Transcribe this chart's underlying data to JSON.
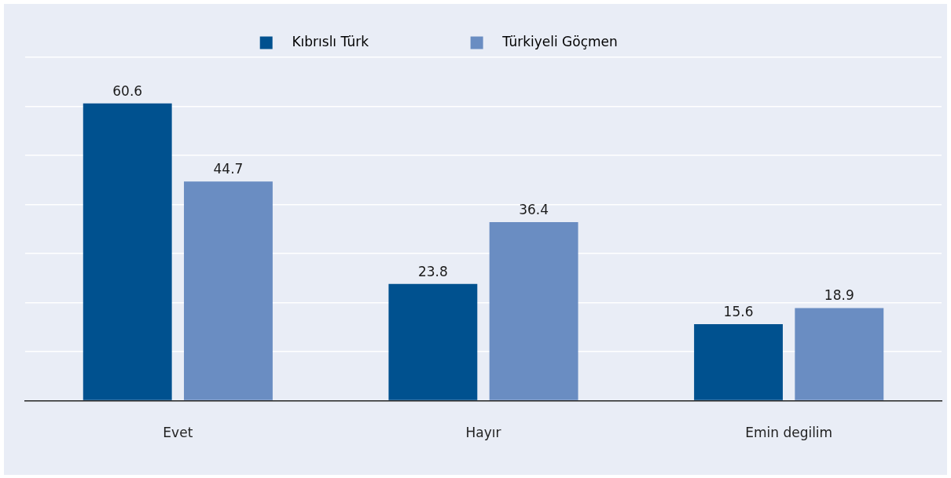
{
  "chart_data": {
    "type": "bar",
    "categories": [
      "Evet",
      "Hayır",
      "Emin degilim"
    ],
    "series": [
      {
        "name": "Kıbrıslı Türk",
        "color": "#00518f",
        "values": [
          60.6,
          23.8,
          15.6
        ]
      },
      {
        "name": "Türkiyeli Göçmen",
        "color": "#6a8dc2",
        "values": [
          44.7,
          36.4,
          18.9
        ]
      }
    ],
    "ylim": [
      0,
      70
    ],
    "yticks": [
      {
        "value": 0,
        "label": null
      },
      {
        "value": 10,
        "label": null
      },
      {
        "value": 20,
        "label": null
      },
      {
        "value": 30,
        "label": null
      },
      {
        "value": 40,
        "label": null
      },
      {
        "value": 50,
        "label": null
      },
      {
        "value": 60,
        "label": null
      },
      {
        "value": 70,
        "label": null
      }
    ],
    "tick_labels": "x",
    "grid": "y",
    "legend": "top",
    "data_labels": true
  }
}
